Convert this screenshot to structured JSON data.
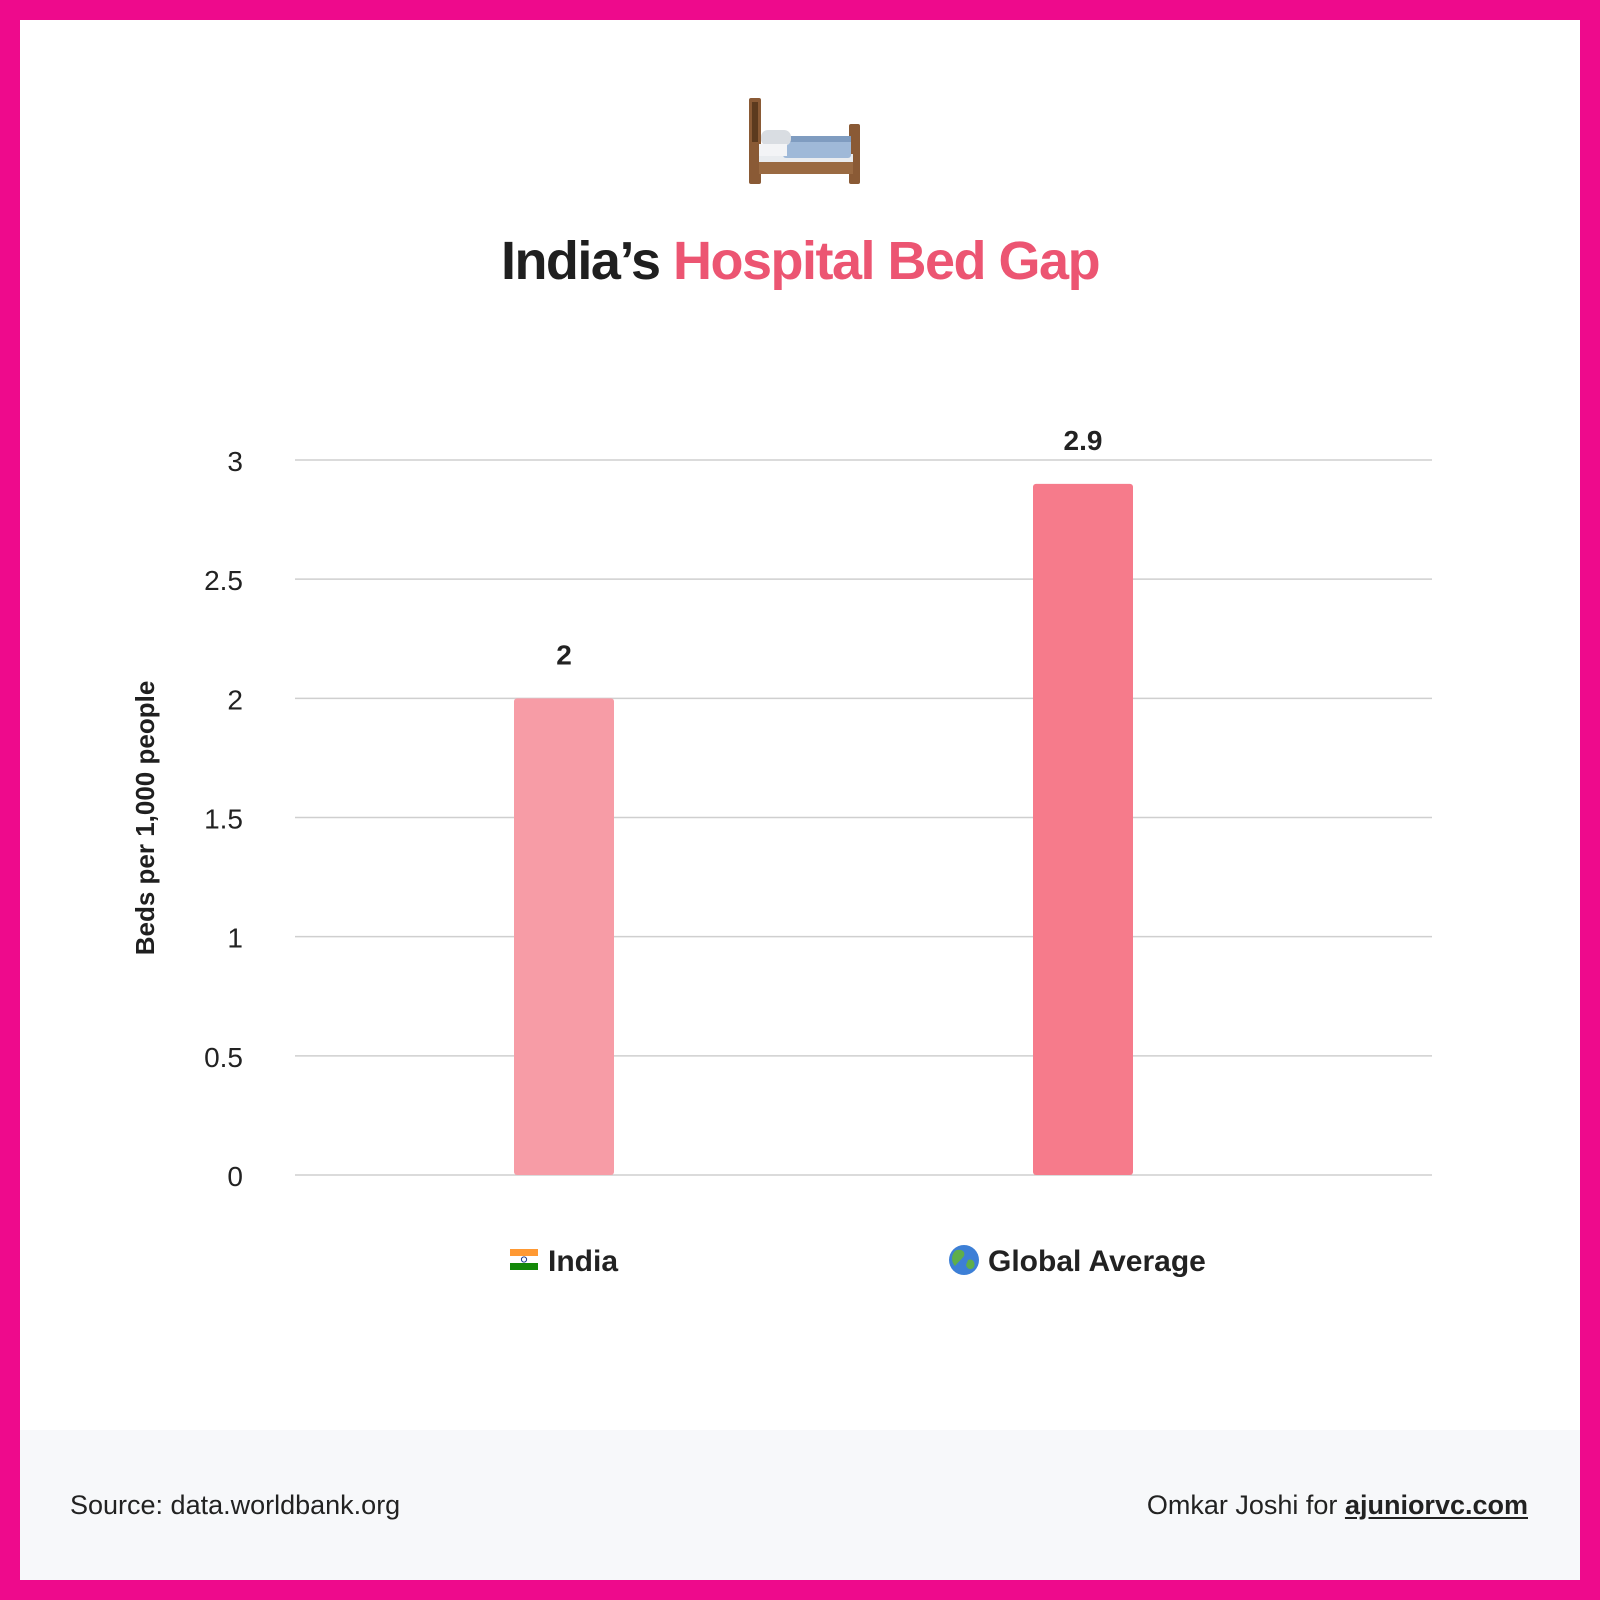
{
  "header": {
    "icon": "bed-icon",
    "title_prefix": "India’s",
    "title_accent": "Hospital Bed Gap"
  },
  "colors": {
    "frame": "#ee0a8c",
    "title_accent": "#ec5572",
    "bar_india": "#f79ca6",
    "bar_global": "#f67b8b",
    "gridline": "#cfcfcf"
  },
  "chart_data": {
    "type": "bar",
    "categories": [
      "India",
      "Global Average"
    ],
    "category_icons": [
      "india-flag-icon",
      "globe-icon"
    ],
    "values": [
      2,
      2.9
    ],
    "value_labels": [
      "2",
      "2.9"
    ],
    "ylabel": "Beds per 1,000 people",
    "ylim": [
      0,
      3
    ],
    "yticks": [
      0,
      0.5,
      1,
      1.5,
      2,
      2.5,
      3
    ],
    "ytick_labels": [
      "0",
      "0.5",
      "1",
      "1.5",
      "2",
      "2.5",
      "3"
    ],
    "grid": true
  },
  "footer": {
    "source": "Source: data.worldbank.org",
    "credit_prefix": "Omkar Joshi for",
    "credit_link": "ajuniorvc.com"
  }
}
